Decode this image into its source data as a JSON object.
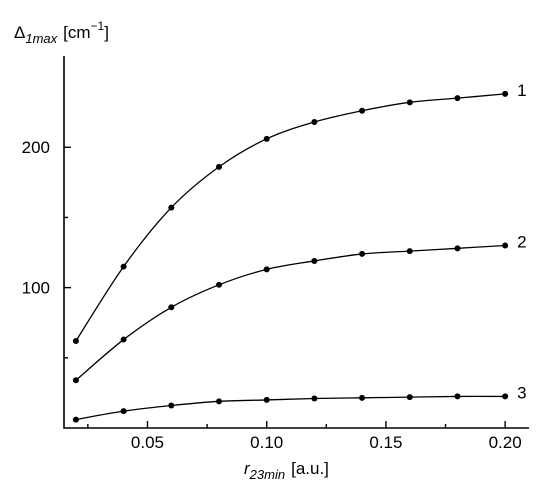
{
  "chart_data": {
    "type": "line",
    "ylabel_symbol": "Δ",
    "ylabel_sub": "1max",
    "ylabel_unit": "[cm",
    "ylabel_exp": "−1",
    "ylabel_close": "]",
    "xlabel_symbol": "r",
    "xlabel_sub": "23min",
    "xlabel_unit": "[a.u.]",
    "xlim": [
      0.015,
      0.21
    ],
    "ylim": [
      0,
      265
    ],
    "x_ticks": [
      0.05,
      0.1,
      0.15,
      0.2
    ],
    "x_tick_labels": [
      "0.05",
      "0.10",
      "0.15",
      "0.20"
    ],
    "x_minor_ticks": [
      0.025,
      0.075,
      0.125,
      0.175
    ],
    "y_ticks": [
      100,
      200
    ],
    "y_tick_labels": [
      "100",
      "200"
    ],
    "y_minor_ticks": [
      50,
      150
    ],
    "grid": false,
    "x": [
      0.02,
      0.04,
      0.06,
      0.08,
      0.1,
      0.12,
      0.14,
      0.16,
      0.18,
      0.2
    ],
    "series": [
      {
        "name": "1",
        "values": [
          62,
          115,
          157,
          186,
          206,
          218,
          226,
          232,
          235,
          238
        ]
      },
      {
        "name": "2",
        "values": [
          34,
          63,
          86,
          102,
          113,
          119,
          124,
          126,
          128,
          130
        ]
      },
      {
        "name": "3",
        "values": [
          6,
          12,
          16,
          19,
          20,
          21,
          21.5,
          22,
          22.5,
          22.5
        ]
      }
    ]
  }
}
